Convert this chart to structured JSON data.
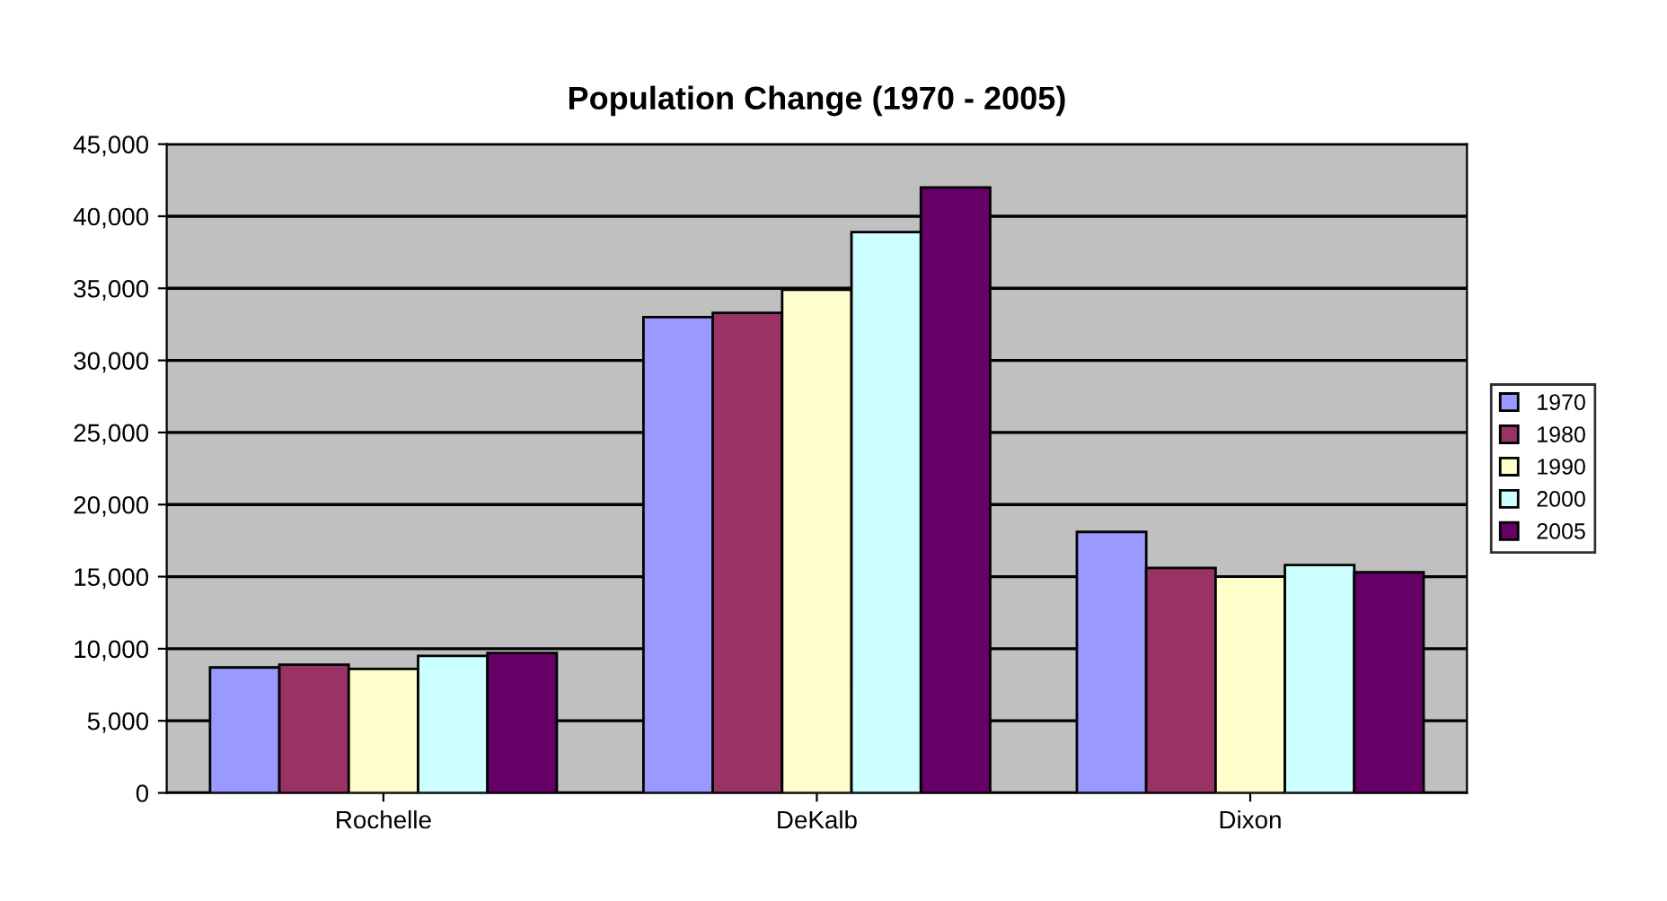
{
  "chart_data": {
    "type": "bar",
    "title": "Population Change (1970 - 2005)",
    "categories": [
      "Rochelle",
      "DeKalb",
      "Dixon"
    ],
    "series": [
      {
        "name": "1970",
        "color": "#9999ff",
        "values": [
          8700,
          33000,
          18100
        ]
      },
      {
        "name": "1980",
        "color": "#993366",
        "values": [
          8900,
          33300,
          15600
        ]
      },
      {
        "name": "1990",
        "color": "#ffffcc",
        "values": [
          8600,
          34900,
          15000
        ]
      },
      {
        "name": "2000",
        "color": "#ccffff",
        "values": [
          9500,
          38900,
          15800
        ]
      },
      {
        "name": "2005",
        "color": "#660066",
        "values": [
          9700,
          42000,
          15300
        ]
      }
    ],
    "ylim": [
      0,
      45000
    ],
    "yticks": [
      {
        "value": 0,
        "label": "0"
      },
      {
        "value": 5000,
        "label": "5,000"
      },
      {
        "value": 10000,
        "label": "10,000"
      },
      {
        "value": 15000,
        "label": "15,000"
      },
      {
        "value": 20000,
        "label": "20,000"
      },
      {
        "value": 25000,
        "label": "25,000"
      },
      {
        "value": 30000,
        "label": "30,000"
      },
      {
        "value": 35000,
        "label": "35,000"
      },
      {
        "value": 40000,
        "label": "40,000"
      },
      {
        "value": 45000,
        "label": "45,000"
      }
    ],
    "grid": "y",
    "legend": "right"
  }
}
